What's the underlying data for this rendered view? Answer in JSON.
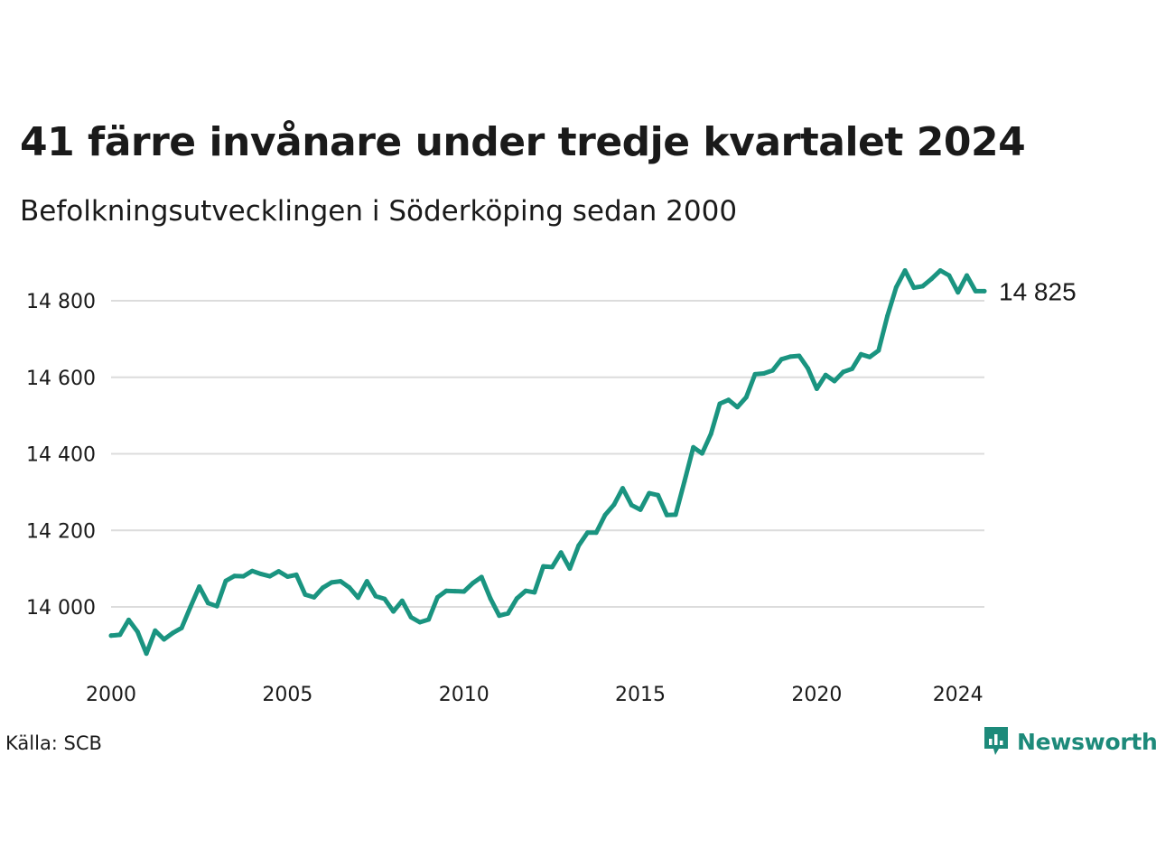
{
  "title": "41 färre invånare under tredje kvartalet 2024",
  "subtitle": "Befolkningsutvecklingen i Söderköping sedan 2000",
  "source": "Källa: SCB",
  "brand": {
    "name": "Newsworthy",
    "icon": "newsworthy-logo-icon",
    "color": "#1d8a7a"
  },
  "chart_data": {
    "type": "line",
    "title": "41 färre invånare under tredje kvartalet 2024",
    "subtitle": "Befolkningsutvecklingen i Söderköping sedan 2000",
    "xlabel": "",
    "ylabel": "",
    "x_ticks": [
      "2000",
      "2005",
      "2010",
      "2015",
      "2020",
      "2024"
    ],
    "y_ticks": [
      {
        "value": 14000,
        "label": "14 000"
      },
      {
        "value": 14200,
        "label": "14 200"
      },
      {
        "value": 14400,
        "label": "14 400"
      },
      {
        "value": 14600,
        "label": "14 600"
      },
      {
        "value": 14800,
        "label": "14 800"
      }
    ],
    "ylim": [
      13850,
      14900
    ],
    "xlim": [
      2000,
      2024.75
    ],
    "grid": "horizontal",
    "color": "#1a9480",
    "end_label": "14 825",
    "series": [
      {
        "x": [
          2000.0,
          2000.25,
          2000.5,
          2000.75,
          2001.0,
          2001.25,
          2001.5,
          2001.75,
          2002.0,
          2002.25,
          2002.5,
          2002.75,
          2003.0,
          2003.25,
          2003.5,
          2003.75,
          2004.0,
          2004.25,
          2004.5,
          2004.75,
          2005.0,
          2005.25,
          2005.5,
          2005.75,
          2006.0,
          2006.25,
          2006.5,
          2006.75,
          2007.0,
          2007.25,
          2007.5,
          2007.75,
          2008.0,
          2008.25,
          2008.5,
          2008.75,
          2009.0,
          2009.25,
          2009.5,
          2009.75,
          2010.0,
          2010.25,
          2010.5,
          2010.75,
          2011.0,
          2011.25,
          2011.5,
          2011.75,
          2012.0,
          2012.25,
          2012.5,
          2012.75,
          2013.0,
          2013.25,
          2013.5,
          2013.75,
          2014.0,
          2014.25,
          2014.5,
          2014.75,
          2015.0,
          2015.25,
          2015.5,
          2015.75,
          2016.0,
          2016.25,
          2016.5,
          2016.75,
          2017.0,
          2017.25,
          2017.5,
          2017.75,
          2018.0,
          2018.25,
          2018.5,
          2018.75,
          2019.0,
          2019.25,
          2019.5,
          2019.75,
          2020.0,
          2020.25,
          2020.5,
          2020.75,
          2021.0,
          2021.25,
          2021.5,
          2021.75,
          2022.0,
          2022.25,
          2022.5,
          2022.75,
          2023.0,
          2023.25,
          2023.5,
          2023.75,
          2024.0,
          2024.25,
          2024.5,
          2024.75
        ],
        "values": [
          13925,
          13927,
          13966,
          13935,
          13878,
          13938,
          13915,
          13932,
          13945,
          14000,
          14053,
          14010,
          14002,
          14068,
          14081,
          14080,
          14094,
          14086,
          14080,
          14093,
          14079,
          14084,
          14032,
          14025,
          14050,
          14064,
          14067,
          14051,
          14024,
          14067,
          14028,
          14021,
          13988,
          14016,
          13973,
          13960,
          13967,
          14025,
          14042,
          14041,
          14040,
          14062,
          14078,
          14022,
          13977,
          13983,
          14022,
          14042,
          14038,
          14106,
          14104,
          14142,
          14100,
          14160,
          14194,
          14194,
          14240,
          14267,
          14310,
          14266,
          14254,
          14297,
          14292,
          14240,
          14241,
          14328,
          14417,
          14401,
          14452,
          14531,
          14541,
          14522,
          14548,
          14608,
          14610,
          14618,
          14647,
          14654,
          14656,
          14623,
          14570,
          14606,
          14590,
          14614,
          14622,
          14660,
          14653,
          14670,
          14760,
          14835,
          14879,
          14834,
          14838,
          14857,
          14879,
          14866,
          14822,
          14866,
          14825,
          14825
        ]
      }
    ]
  }
}
